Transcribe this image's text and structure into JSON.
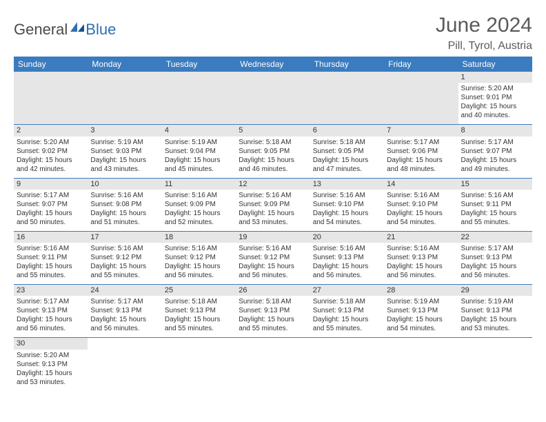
{
  "logo": {
    "text1": "General",
    "text2": "Blue"
  },
  "title": "June 2024",
  "location": "Pill, Tyrol, Austria",
  "header_bg": "#3a7cbf",
  "header_fg": "#ffffff",
  "daynum_bg": "#e6e6e6",
  "border_color": "#3a7cbf",
  "days": [
    "Sunday",
    "Monday",
    "Tuesday",
    "Wednesday",
    "Thursday",
    "Friday",
    "Saturday"
  ],
  "weeks": [
    [
      null,
      null,
      null,
      null,
      null,
      null,
      {
        "n": "1",
        "sr": "Sunrise: 5:20 AM",
        "ss": "Sunset: 9:01 PM",
        "dl1": "Daylight: 15 hours",
        "dl2": "and 40 minutes."
      }
    ],
    [
      {
        "n": "2",
        "sr": "Sunrise: 5:20 AM",
        "ss": "Sunset: 9:02 PM",
        "dl1": "Daylight: 15 hours",
        "dl2": "and 42 minutes."
      },
      {
        "n": "3",
        "sr": "Sunrise: 5:19 AM",
        "ss": "Sunset: 9:03 PM",
        "dl1": "Daylight: 15 hours",
        "dl2": "and 43 minutes."
      },
      {
        "n": "4",
        "sr": "Sunrise: 5:19 AM",
        "ss": "Sunset: 9:04 PM",
        "dl1": "Daylight: 15 hours",
        "dl2": "and 45 minutes."
      },
      {
        "n": "5",
        "sr": "Sunrise: 5:18 AM",
        "ss": "Sunset: 9:05 PM",
        "dl1": "Daylight: 15 hours",
        "dl2": "and 46 minutes."
      },
      {
        "n": "6",
        "sr": "Sunrise: 5:18 AM",
        "ss": "Sunset: 9:05 PM",
        "dl1": "Daylight: 15 hours",
        "dl2": "and 47 minutes."
      },
      {
        "n": "7",
        "sr": "Sunrise: 5:17 AM",
        "ss": "Sunset: 9:06 PM",
        "dl1": "Daylight: 15 hours",
        "dl2": "and 48 minutes."
      },
      {
        "n": "8",
        "sr": "Sunrise: 5:17 AM",
        "ss": "Sunset: 9:07 PM",
        "dl1": "Daylight: 15 hours",
        "dl2": "and 49 minutes."
      }
    ],
    [
      {
        "n": "9",
        "sr": "Sunrise: 5:17 AM",
        "ss": "Sunset: 9:07 PM",
        "dl1": "Daylight: 15 hours",
        "dl2": "and 50 minutes."
      },
      {
        "n": "10",
        "sr": "Sunrise: 5:16 AM",
        "ss": "Sunset: 9:08 PM",
        "dl1": "Daylight: 15 hours",
        "dl2": "and 51 minutes."
      },
      {
        "n": "11",
        "sr": "Sunrise: 5:16 AM",
        "ss": "Sunset: 9:09 PM",
        "dl1": "Daylight: 15 hours",
        "dl2": "and 52 minutes."
      },
      {
        "n": "12",
        "sr": "Sunrise: 5:16 AM",
        "ss": "Sunset: 9:09 PM",
        "dl1": "Daylight: 15 hours",
        "dl2": "and 53 minutes."
      },
      {
        "n": "13",
        "sr": "Sunrise: 5:16 AM",
        "ss": "Sunset: 9:10 PM",
        "dl1": "Daylight: 15 hours",
        "dl2": "and 54 minutes."
      },
      {
        "n": "14",
        "sr": "Sunrise: 5:16 AM",
        "ss": "Sunset: 9:10 PM",
        "dl1": "Daylight: 15 hours",
        "dl2": "and 54 minutes."
      },
      {
        "n": "15",
        "sr": "Sunrise: 5:16 AM",
        "ss": "Sunset: 9:11 PM",
        "dl1": "Daylight: 15 hours",
        "dl2": "and 55 minutes."
      }
    ],
    [
      {
        "n": "16",
        "sr": "Sunrise: 5:16 AM",
        "ss": "Sunset: 9:11 PM",
        "dl1": "Daylight: 15 hours",
        "dl2": "and 55 minutes."
      },
      {
        "n": "17",
        "sr": "Sunrise: 5:16 AM",
        "ss": "Sunset: 9:12 PM",
        "dl1": "Daylight: 15 hours",
        "dl2": "and 55 minutes."
      },
      {
        "n": "18",
        "sr": "Sunrise: 5:16 AM",
        "ss": "Sunset: 9:12 PM",
        "dl1": "Daylight: 15 hours",
        "dl2": "and 56 minutes."
      },
      {
        "n": "19",
        "sr": "Sunrise: 5:16 AM",
        "ss": "Sunset: 9:12 PM",
        "dl1": "Daylight: 15 hours",
        "dl2": "and 56 minutes."
      },
      {
        "n": "20",
        "sr": "Sunrise: 5:16 AM",
        "ss": "Sunset: 9:13 PM",
        "dl1": "Daylight: 15 hours",
        "dl2": "and 56 minutes."
      },
      {
        "n": "21",
        "sr": "Sunrise: 5:16 AM",
        "ss": "Sunset: 9:13 PM",
        "dl1": "Daylight: 15 hours",
        "dl2": "and 56 minutes."
      },
      {
        "n": "22",
        "sr": "Sunrise: 5:17 AM",
        "ss": "Sunset: 9:13 PM",
        "dl1": "Daylight: 15 hours",
        "dl2": "and 56 minutes."
      }
    ],
    [
      {
        "n": "23",
        "sr": "Sunrise: 5:17 AM",
        "ss": "Sunset: 9:13 PM",
        "dl1": "Daylight: 15 hours",
        "dl2": "and 56 minutes."
      },
      {
        "n": "24",
        "sr": "Sunrise: 5:17 AM",
        "ss": "Sunset: 9:13 PM",
        "dl1": "Daylight: 15 hours",
        "dl2": "and 56 minutes."
      },
      {
        "n": "25",
        "sr": "Sunrise: 5:18 AM",
        "ss": "Sunset: 9:13 PM",
        "dl1": "Daylight: 15 hours",
        "dl2": "and 55 minutes."
      },
      {
        "n": "26",
        "sr": "Sunrise: 5:18 AM",
        "ss": "Sunset: 9:13 PM",
        "dl1": "Daylight: 15 hours",
        "dl2": "and 55 minutes."
      },
      {
        "n": "27",
        "sr": "Sunrise: 5:18 AM",
        "ss": "Sunset: 9:13 PM",
        "dl1": "Daylight: 15 hours",
        "dl2": "and 55 minutes."
      },
      {
        "n": "28",
        "sr": "Sunrise: 5:19 AM",
        "ss": "Sunset: 9:13 PM",
        "dl1": "Daylight: 15 hours",
        "dl2": "and 54 minutes."
      },
      {
        "n": "29",
        "sr": "Sunrise: 5:19 AM",
        "ss": "Sunset: 9:13 PM",
        "dl1": "Daylight: 15 hours",
        "dl2": "and 53 minutes."
      }
    ],
    [
      {
        "n": "30",
        "sr": "Sunrise: 5:20 AM",
        "ss": "Sunset: 9:13 PM",
        "dl1": "Daylight: 15 hours",
        "dl2": "and 53 minutes."
      },
      null,
      null,
      null,
      null,
      null,
      null
    ]
  ]
}
